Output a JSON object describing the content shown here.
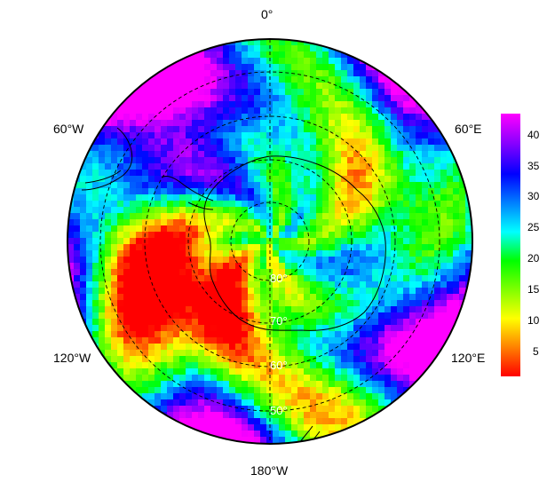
{
  "map": {
    "projection": "south-polar-stereographic",
    "longitude_labels": {
      "top": "0°",
      "upper_left": "60°W",
      "upper_right": "60°E",
      "lower_left": "120°W",
      "lower_right": "120°E",
      "bottom": "180°W"
    },
    "latitude_labels": [
      "80°",
      "70°",
      "60°",
      "50°"
    ],
    "graticule": {
      "latitudes": [
        80,
        70,
        60,
        50
      ],
      "style": "dashed"
    },
    "colormap": [
      "#ff0000",
      "#ff8000",
      "#ffff00",
      "#80ff00",
      "#00ff00",
      "#00ffff",
      "#0080ff",
      "#0000ff",
      "#8000ff",
      "#ff00ff"
    ]
  },
  "colorbar": {
    "min": 0,
    "max": 43,
    "ticks": [
      "40",
      "35",
      "30",
      "25",
      "20",
      "15",
      "10",
      "5"
    ]
  }
}
